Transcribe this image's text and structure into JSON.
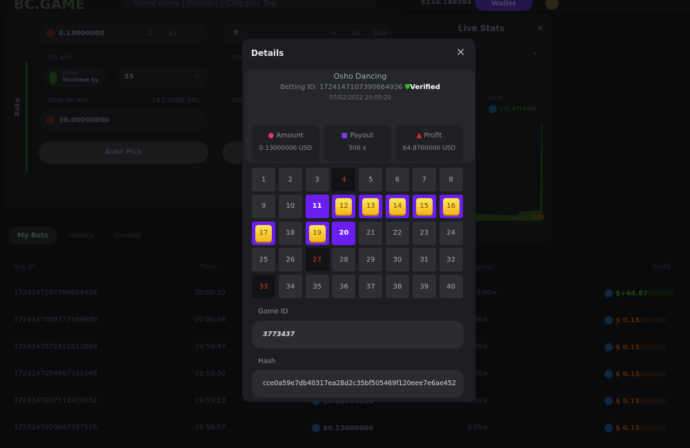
{
  "header": {
    "logo": "BC.GAME",
    "search_placeholder": "Game name | Provider | Category Tag",
    "balance": "$114.148384",
    "wallet": "Wallet"
  },
  "bet_panel": {
    "mode": "Auto",
    "amount": "0.13000000",
    "half": "/2",
    "double": "x2",
    "number_of_bets": "0",
    "bets_inf": "∞",
    "bets_10": "10",
    "bets_100": "100",
    "on_win_label": "On win",
    "reset": "Reset",
    "increase_by": "Increase by",
    "increase_value": "55",
    "percent": "%",
    "on_loss_label": "On",
    "stop_on_win_label": "Stop on win",
    "stop_on_win_conv": "187.5000 BRL",
    "stop_on_win_value": "30.00000000",
    "stop_on_loss_label": "Sto",
    "auto_pick": "Auto Pick"
  },
  "live_stats": {
    "title": "Live Stats",
    "profit_label": "Profit",
    "profit_value": "$72.4714400",
    "lose_label": "Lose",
    "lose_value": "143"
  },
  "tabs": [
    "My Bets",
    "History",
    "Contest"
  ],
  "table": {
    "headers": {
      "bet_id": "Bet ID",
      "time": "Time",
      "payout": "Payout",
      "profit": "Profit"
    },
    "rows": [
      {
        "id": "1724147107390664936",
        "time": "20:00:20",
        "amount": "",
        "payout": "500.00×",
        "profit_main": "$+64.87",
        "profit_tail": "000000",
        "win": true
      },
      {
        "id": "1724147089772488680",
        "time": "20:00:04",
        "amount": "",
        "payout": "0.00×",
        "profit_main": "$ 0.13",
        "profit_tail": "000000",
        "win": false
      },
      {
        "id": "1724147072421613868",
        "time": "19:59:47",
        "amount": "",
        "payout": "0.00×",
        "profit_main": "$ 0.13",
        "profit_tail": "000000",
        "win": false
      },
      {
        "id": "1724147054907331048",
        "time": "19:59:30",
        "amount": "",
        "payout": "0.00×",
        "profit_main": "$ 0.13",
        "profit_tail": "000000",
        "win": false
      },
      {
        "id": "1724147037512420652",
        "time": "19:59:13",
        "amount": "$0.13000000",
        "payout": "0.00×",
        "profit_main": "$ 0.13",
        "profit_tail": "000000",
        "win": false
      },
      {
        "id": "1724147020047337516",
        "time": "19:58:57",
        "amount": "$0.13000000",
        "payout": "0.00×",
        "profit_main": "$ 0.13",
        "profit_tail": "000000",
        "win": false
      }
    ]
  },
  "modal": {
    "title": "Details",
    "player": "Osho Dancing",
    "betting_id": "Betting ID: 1724147107390664936",
    "verified": "Verified",
    "datetime": "07/02/2022 20:00:20",
    "stats": [
      {
        "label": "Amount",
        "value": "0.13000000 USD",
        "icon": "coins-icon",
        "color": "#e8326b"
      },
      {
        "label": "Payout",
        "value": "500 x",
        "icon": "card-icon",
        "color": "#7b3cf0"
      },
      {
        "label": "Profit",
        "value": "64.8700000 USD",
        "icon": "profit-icon",
        "color": "#e02a2a"
      }
    ],
    "game_id_label": "Game ID",
    "game_id": "3773437",
    "hash_label": "Hash",
    "hash": "cce0a59e7db40317ea28d2c35bf505469f120eee7e6ae452",
    "cells": {
      "miss": [
        4,
        27,
        33
      ],
      "pick": [
        11,
        20
      ],
      "hit": [
        12,
        13,
        14,
        15,
        16,
        17,
        19
      ]
    }
  },
  "colors": {
    "accent_purple": "#6a1ff0",
    "gem_yellow": "#ffd43b",
    "win_green": "#3ecf2b",
    "loss_orange": "#e05a12"
  }
}
